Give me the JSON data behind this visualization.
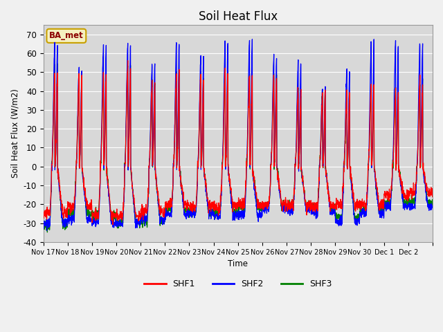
{
  "title": "Soil Heat Flux",
  "ylabel": "Soil Heat Flux (W/m2)",
  "xlabel": "Time",
  "ylim": [
    -40,
    75
  ],
  "yticks": [
    -40,
    -30,
    -20,
    -10,
    0,
    10,
    20,
    30,
    40,
    50,
    60,
    70
  ],
  "plot_bg_color": "#d8d8d8",
  "legend_labels": [
    "SHF1",
    "SHF2",
    "SHF3"
  ],
  "legend_colors": [
    "red",
    "blue",
    "green"
  ],
  "site_label": "BA_met",
  "n_days": 16,
  "xtick_labels": [
    "Nov 17",
    "Nov 18",
    "Nov 19",
    "Nov 20",
    "Nov 21",
    "Nov 22",
    "Nov 23",
    "Nov 24",
    "Nov 25",
    "Nov 26",
    "Nov 27",
    "Nov 28",
    "Nov 29",
    "Nov 30",
    "Dec 1",
    "Dec 2"
  ],
  "day_peaks_shf2": [
    65,
    52,
    63,
    64,
    54,
    66,
    58,
    66,
    66,
    59,
    56,
    42,
    51,
    66,
    66,
    66
  ],
  "day_peaks_shf1": [
    50,
    48,
    48,
    54,
    45,
    50,
    48,
    50,
    48,
    48,
    40,
    40,
    40,
    44,
    40,
    45
  ],
  "day_peaks_shf3": [
    54,
    47,
    47,
    53,
    44,
    50,
    47,
    51,
    49,
    48,
    40,
    39,
    39,
    43,
    39,
    44
  ],
  "night_vals_shf1": [
    -25,
    -21,
    -26,
    -26,
    -24,
    -20,
    -21,
    -21,
    -20,
    -20,
    -21,
    -21,
    -20,
    -20,
    -15,
    -14
  ],
  "night_vals_shf2": [
    -30,
    -28,
    -30,
    -30,
    -28,
    -25,
    -25,
    -26,
    -26,
    -22,
    -23,
    -24,
    -29,
    -25,
    -21,
    -21
  ],
  "night_vals_shf3": [
    -31,
    -25,
    -26,
    -30,
    -29,
    -23,
    -24,
    -24,
    -22,
    -21,
    -21,
    -22,
    -27,
    -23,
    -19,
    -19
  ]
}
